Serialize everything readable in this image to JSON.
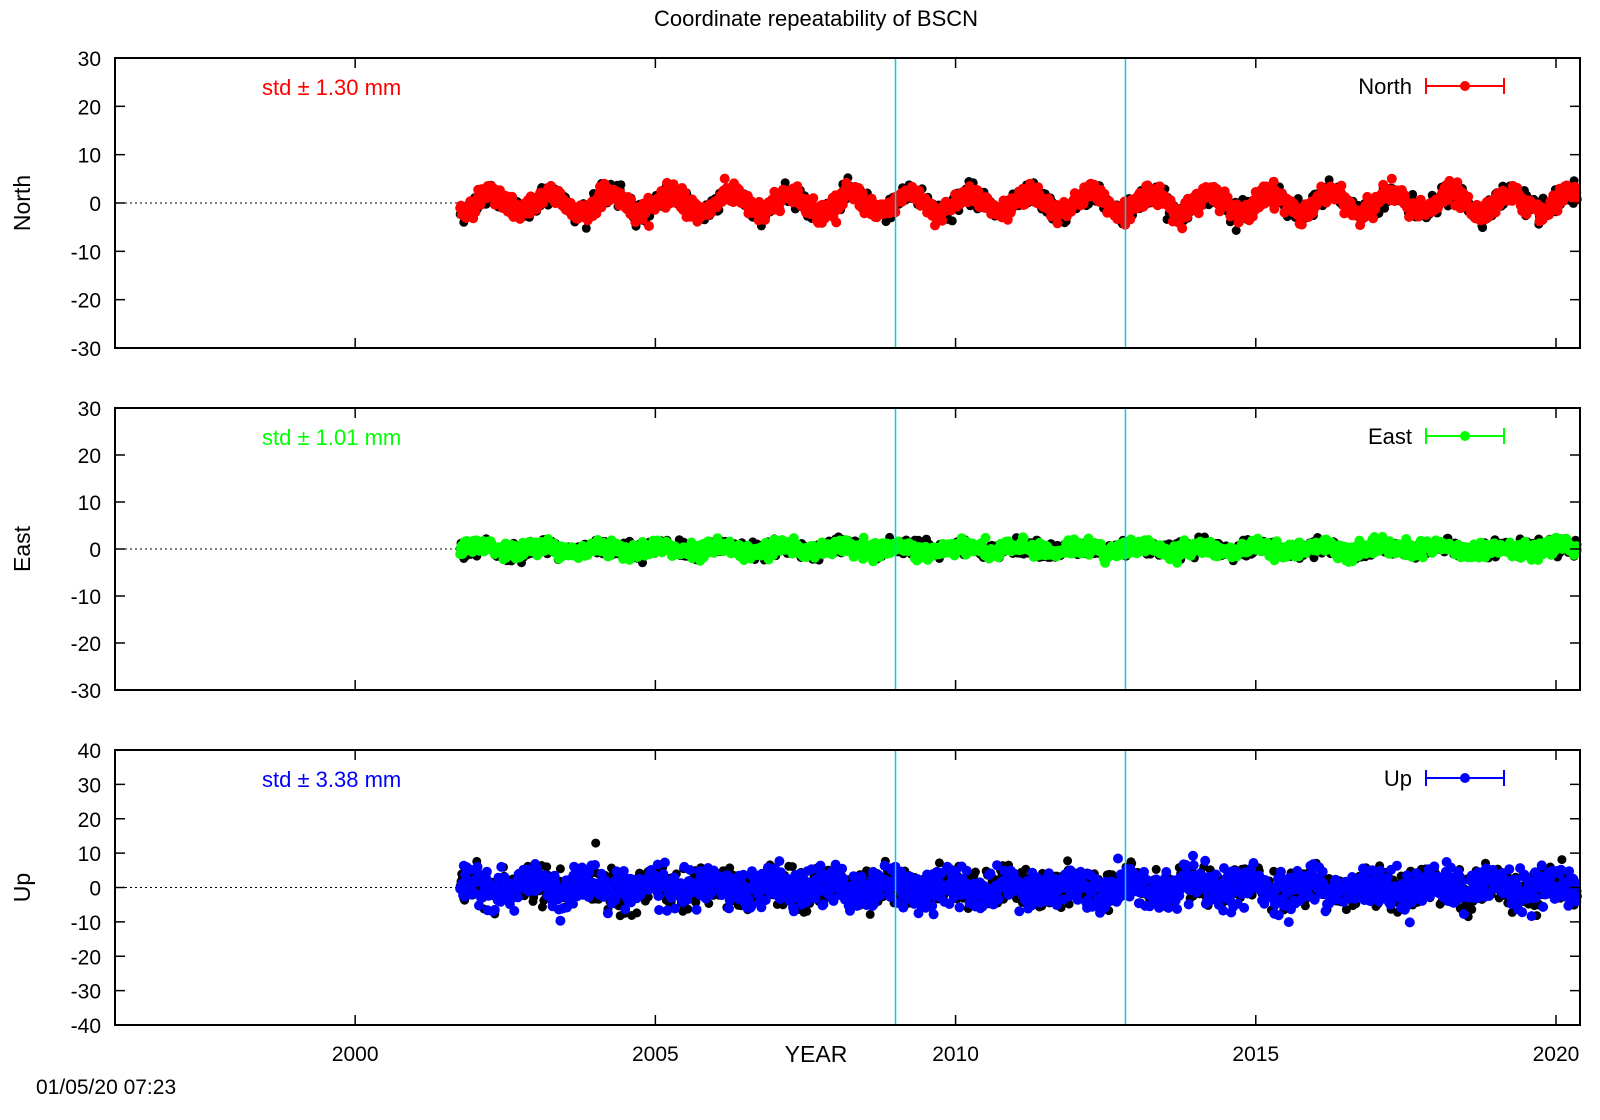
{
  "title": "Coordinate repeatability of BSCN",
  "timestamp": "01/05/20 07:23",
  "xlabel": "YEAR",
  "colors": {
    "north": "#ff0000",
    "east": "#00ff00",
    "up": "#0000ff",
    "shadow": "#000000",
    "event_line": "#00d0e0",
    "frame": "#000000"
  },
  "chart_data": [
    {
      "type": "scatter",
      "name": "north",
      "ylabel": "North",
      "std_text": "std ± 1.30 mm",
      "legend": "North",
      "legend_position": "top-right",
      "xlim": [
        1996,
        2020.4
      ],
      "ylim": [
        -30,
        30
      ],
      "yticks": [
        30,
        20,
        10,
        0,
        -10,
        -20,
        -30
      ],
      "xticks": [
        2000,
        2005,
        2010,
        2015,
        2020
      ],
      "event_lines": [
        2009.0,
        2012.83
      ],
      "zero_line": true,
      "data_start": 2001.75,
      "data_end": 2020.35,
      "seasonal_amplitude": 2.0,
      "noise": 1.3
    },
    {
      "type": "scatter",
      "name": "east",
      "ylabel": "East",
      "std_text": "std ± 1.01 mm",
      "legend": "East",
      "legend_position": "top-right",
      "xlim": [
        1996,
        2020.4
      ],
      "ylim": [
        -30,
        30
      ],
      "yticks": [
        30,
        20,
        10,
        0,
        -10,
        -20,
        -30
      ],
      "xticks": [
        2000,
        2005,
        2010,
        2015,
        2020
      ],
      "event_lines": [
        2009.0,
        2012.83
      ],
      "zero_line": true,
      "data_start": 2001.75,
      "data_end": 2020.35,
      "seasonal_amplitude": 0.6,
      "noise": 1.0
    },
    {
      "type": "scatter",
      "name": "up",
      "ylabel": "Up",
      "std_text": "std ± 3.38 mm",
      "legend": "Up",
      "legend_position": "top-right",
      "xlim": [
        1996,
        2020.4
      ],
      "ylim": [
        -40,
        40
      ],
      "yticks": [
        40,
        30,
        20,
        10,
        0,
        -10,
        -20,
        -30,
        -40
      ],
      "xticks": [
        2000,
        2005,
        2010,
        2015,
        2020
      ],
      "xtick_labels": [
        "2000",
        "2005",
        "2010",
        "2015",
        "2020"
      ],
      "event_lines": [
        2009.0,
        2012.83
      ],
      "zero_line": true,
      "data_start": 2001.75,
      "data_end": 2020.35,
      "seasonal_amplitude": 1.5,
      "noise": 3.38
    }
  ]
}
